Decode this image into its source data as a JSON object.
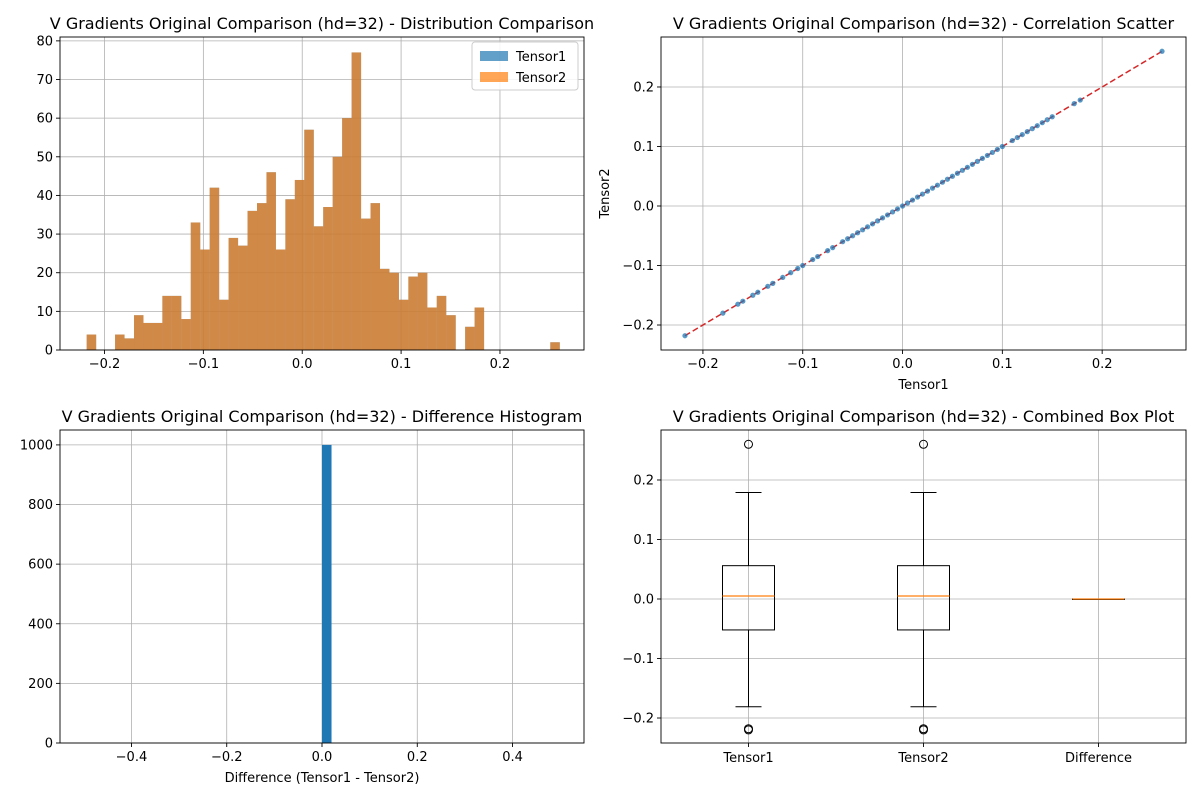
{
  "figure": {
    "background": "#ffffff"
  },
  "chart_data": [
    {
      "id": "dist",
      "type": "bar",
      "title": "V Gradients Original Comparison (hd=32) - Distribution Comparison",
      "xlabel": "",
      "ylabel": "",
      "xlim": [
        -0.245,
        0.285
      ],
      "ylim": [
        0,
        81
      ],
      "xticks": [
        -0.2,
        -0.1,
        0.0,
        0.1,
        0.2
      ],
      "xtick_labels": [
        "−0.2",
        "−0.1",
        "0.0",
        "0.1",
        "0.2"
      ],
      "yticks": [
        0,
        10,
        20,
        30,
        40,
        50,
        60,
        70,
        80
      ],
      "ytick_labels": [
        "0",
        "10",
        "20",
        "30",
        "40",
        "50",
        "60",
        "70",
        "80"
      ],
      "grid": true,
      "legend": {
        "placement": "top-right",
        "entries": [
          "Tensor1",
          "Tensor2"
        ]
      },
      "bin_start": -0.218,
      "bin_width": 0.00957,
      "series": [
        {
          "name": "Tensor1",
          "color": "#1f77b4",
          "alpha": 0.7,
          "values": [
            4,
            0,
            0,
            4,
            3,
            9,
            7,
            7,
            14,
            14,
            8,
            33,
            26,
            42,
            13,
            29,
            27,
            36,
            38,
            46,
            26,
            39,
            44,
            57,
            32,
            37,
            50,
            60,
            77,
            34,
            38,
            21,
            20,
            13,
            19,
            20,
            11,
            14,
            9,
            0,
            6,
            11,
            0,
            0,
            0,
            0,
            0,
            0,
            0,
            2
          ]
        },
        {
          "name": "Tensor2",
          "color": "#ff7f0e",
          "alpha": 0.7,
          "values": [
            4,
            0,
            0,
            4,
            3,
            9,
            7,
            7,
            14,
            14,
            8,
            33,
            26,
            42,
            13,
            29,
            27,
            36,
            38,
            46,
            26,
            39,
            44,
            57,
            32,
            37,
            50,
            60,
            77,
            34,
            38,
            21,
            20,
            13,
            19,
            20,
            11,
            14,
            9,
            0,
            6,
            11,
            0,
            0,
            0,
            0,
            0,
            0,
            0,
            2
          ]
        }
      ]
    },
    {
      "id": "scatter",
      "type": "scatter",
      "title": "V Gradients Original Comparison (hd=32) - Correlation Scatter",
      "xlabel": "Tensor1",
      "ylabel": "Tensor2",
      "xlim": [
        -0.242,
        0.284
      ],
      "ylim": [
        -0.242,
        0.284
      ],
      "xticks": [
        -0.2,
        -0.1,
        0.0,
        0.1,
        0.2
      ],
      "xtick_labels": [
        "−0.2",
        "−0.1",
        "0.0",
        "0.1",
        "0.2"
      ],
      "yticks": [
        -0.2,
        -0.1,
        0.0,
        0.1,
        0.2
      ],
      "ytick_labels": [
        "−0.2",
        "−0.1",
        "0.0",
        "0.1",
        "0.2"
      ],
      "grid": true,
      "point_color": "#1f77b4",
      "line": {
        "x": [
          -0.218,
          0.26
        ],
        "y": [
          -0.218,
          0.26
        ],
        "color": "#d62728",
        "style": "dashed"
      },
      "x": [
        -0.218,
        -0.18,
        -0.165,
        -0.16,
        -0.15,
        -0.145,
        -0.135,
        -0.13,
        -0.12,
        -0.112,
        -0.105,
        -0.1,
        -0.09,
        -0.085,
        -0.075,
        -0.07,
        -0.06,
        -0.055,
        -0.05,
        -0.045,
        -0.04,
        -0.035,
        -0.03,
        -0.025,
        -0.02,
        -0.015,
        -0.01,
        -0.005,
        0.0,
        0.005,
        0.01,
        0.015,
        0.02,
        0.025,
        0.03,
        0.035,
        0.04,
        0.045,
        0.05,
        0.055,
        0.06,
        0.065,
        0.07,
        0.075,
        0.08,
        0.085,
        0.09,
        0.095,
        0.1,
        0.11,
        0.115,
        0.12,
        0.125,
        0.13,
        0.135,
        0.14,
        0.145,
        0.15,
        0.172,
        0.178,
        0.26
      ],
      "y": [
        -0.218,
        -0.18,
        -0.165,
        -0.16,
        -0.15,
        -0.145,
        -0.135,
        -0.13,
        -0.12,
        -0.112,
        -0.105,
        -0.1,
        -0.09,
        -0.085,
        -0.075,
        -0.07,
        -0.06,
        -0.055,
        -0.05,
        -0.045,
        -0.04,
        -0.035,
        -0.03,
        -0.025,
        -0.02,
        -0.015,
        -0.01,
        -0.005,
        0.0,
        0.005,
        0.01,
        0.015,
        0.02,
        0.025,
        0.03,
        0.035,
        0.04,
        0.045,
        0.05,
        0.055,
        0.06,
        0.065,
        0.07,
        0.075,
        0.08,
        0.085,
        0.09,
        0.095,
        0.1,
        0.11,
        0.115,
        0.12,
        0.125,
        0.13,
        0.135,
        0.14,
        0.145,
        0.15,
        0.172,
        0.178,
        0.26
      ]
    },
    {
      "id": "diff",
      "type": "bar",
      "title": "V Gradients Original Comparison (hd=32) - Difference Histogram",
      "xlabel": "Difference (Tensor1 - Tensor2)",
      "ylabel": "",
      "xlim": [
        -0.55,
        0.55
      ],
      "ylim": [
        0,
        1050
      ],
      "xticks": [
        -0.4,
        -0.2,
        0.0,
        0.2,
        0.4
      ],
      "xtick_labels": [
        "−0.4",
        "−0.2",
        "0.0",
        "0.2",
        "0.4"
      ],
      "yticks": [
        0,
        200,
        400,
        600,
        800,
        1000
      ],
      "ytick_labels": [
        "0",
        "200",
        "400",
        "600",
        "800",
        "1000"
      ],
      "grid": true,
      "bars": [
        {
          "x0": 0.0,
          "x1": 0.02,
          "value": 1000,
          "color": "#1f77b4"
        }
      ]
    },
    {
      "id": "box",
      "type": "box",
      "title": "V Gradients Original Comparison (hd=32) - Combined Box Plot",
      "xlabel": "",
      "ylabel": "",
      "ylim": [
        -0.242,
        0.284
      ],
      "yticks": [
        -0.2,
        -0.1,
        0.0,
        0.1,
        0.2
      ],
      "ytick_labels": [
        "−0.2",
        "−0.1",
        "0.0",
        "0.1",
        "0.2"
      ],
      "grid": true,
      "categories": [
        "Tensor1",
        "Tensor2",
        "Difference"
      ],
      "boxes": [
        {
          "q1": -0.052,
          "median": 0.005,
          "q3": 0.056,
          "whisker_low": -0.181,
          "whisker_high": 0.179,
          "outliers": [
            0.26,
            -0.218,
            -0.22
          ]
        },
        {
          "q1": -0.052,
          "median": 0.005,
          "q3": 0.056,
          "whisker_low": -0.181,
          "whisker_high": 0.179,
          "outliers": [
            0.26,
            -0.218,
            -0.22
          ]
        },
        {
          "q1": 0.0,
          "median": 0.0,
          "q3": 0.0,
          "whisker_low": 0.0,
          "whisker_high": 0.0,
          "outliers": []
        }
      ],
      "median_color": "#ff7f0e"
    }
  ]
}
